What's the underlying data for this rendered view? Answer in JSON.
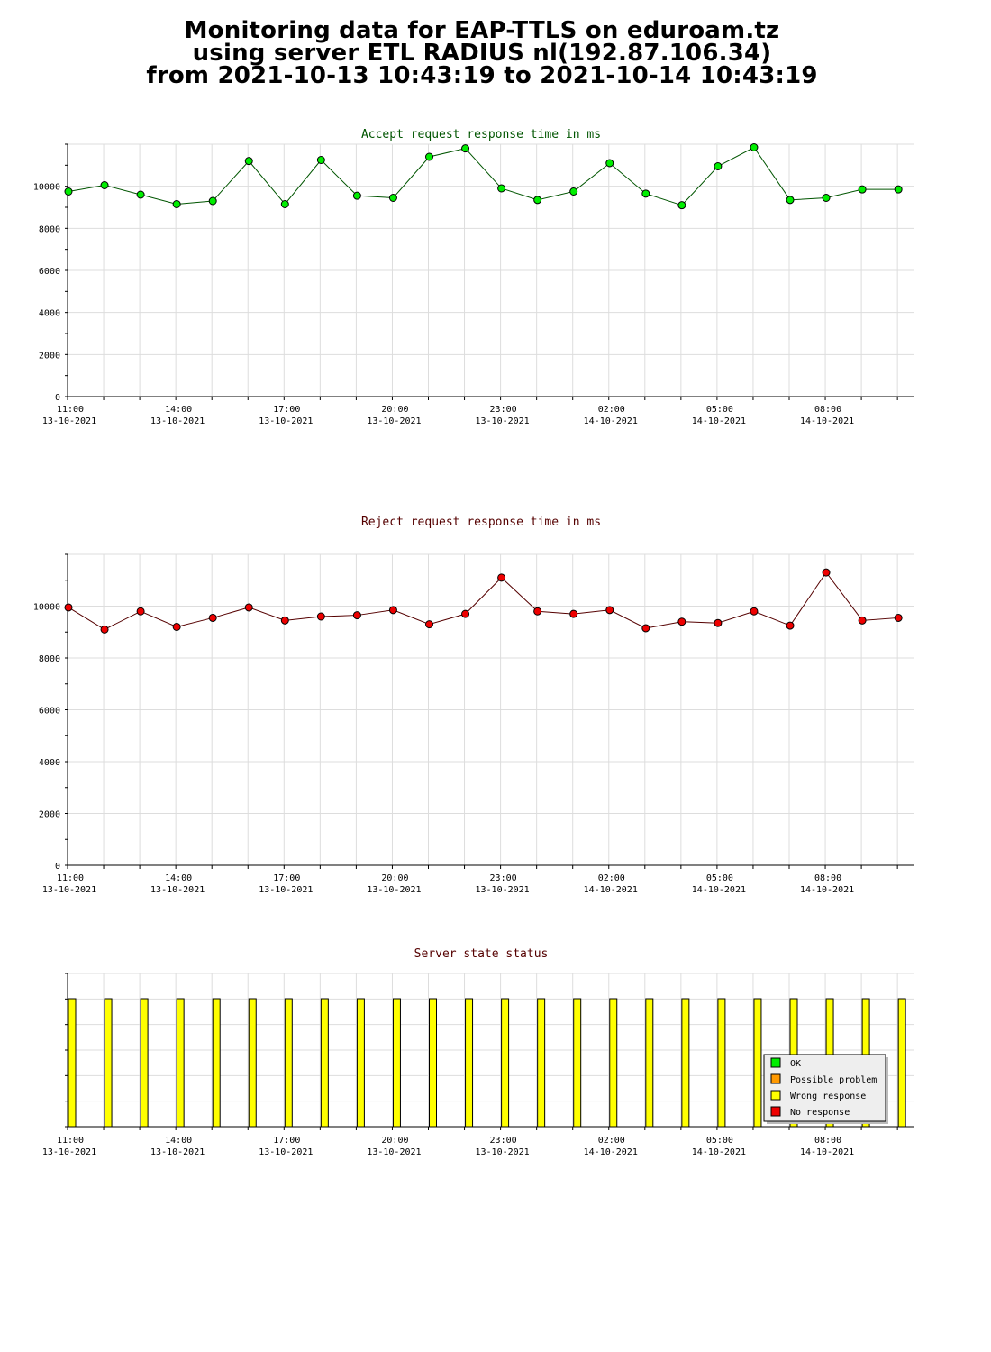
{
  "page_title": {
    "line1": "Monitoring data for EAP-TTLS on eduroam.tz",
    "line2": "using server ETL RADIUS nl(192.87.106.34)",
    "line3": "from 2021-10-13 10:43:19 to 2021-10-14 10:43:19"
  },
  "chart_data": [
    {
      "type": "line",
      "title": "Accept request response time in ms",
      "title_color": "#005500",
      "marker_color": "#00ee00",
      "line_color": "#005500",
      "ylim": [
        0,
        12000
      ],
      "yticks": [
        0,
        2000,
        4000,
        6000,
        8000,
        10000
      ],
      "x_tick_labels": [
        {
          "time": "11:00",
          "date": "13-10-2021"
        },
        {
          "time": "14:00",
          "date": "13-10-2021"
        },
        {
          "time": "17:00",
          "date": "13-10-2021"
        },
        {
          "time": "20:00",
          "date": "13-10-2021"
        },
        {
          "time": "23:00",
          "date": "13-10-2021"
        },
        {
          "time": "02:00",
          "date": "14-10-2021"
        },
        {
          "time": "05:00",
          "date": "14-10-2021"
        },
        {
          "time": "08:00",
          "date": "14-10-2021"
        }
      ],
      "grid": true,
      "values": [
        9750,
        10050,
        9600,
        9150,
        9300,
        11200,
        9150,
        11250,
        9550,
        9450,
        11400,
        11800,
        9900,
        9350,
        9750,
        11100,
        9650,
        9100,
        10950,
        11850,
        9350,
        9450,
        9850,
        9850
      ]
    },
    {
      "type": "line",
      "title": "Reject request response time in ms",
      "title_color": "#550000",
      "marker_color": "#ee0000",
      "line_color": "#550000",
      "ylim": [
        0,
        12000
      ],
      "yticks": [
        0,
        2000,
        4000,
        6000,
        8000,
        10000
      ],
      "x_tick_labels": [
        {
          "time": "11:00",
          "date": "13-10-2021"
        },
        {
          "time": "14:00",
          "date": "13-10-2021"
        },
        {
          "time": "17:00",
          "date": "13-10-2021"
        },
        {
          "time": "20:00",
          "date": "13-10-2021"
        },
        {
          "time": "23:00",
          "date": "13-10-2021"
        },
        {
          "time": "02:00",
          "date": "14-10-2021"
        },
        {
          "time": "05:00",
          "date": "14-10-2021"
        },
        {
          "time": "08:00",
          "date": "14-10-2021"
        }
      ],
      "grid": true,
      "values": [
        9950,
        9100,
        9800,
        9200,
        9550,
        9950,
        9450,
        9600,
        9650,
        9850,
        9300,
        9700,
        11100,
        9800,
        9700,
        9850,
        9150,
        9400,
        9350,
        9800,
        9250,
        11300,
        9450,
        9550
      ]
    },
    {
      "type": "bar",
      "title": "Server state status",
      "title_color": "#550000",
      "bar_color": "#ffff00",
      "x_tick_labels": [
        {
          "time": "11:00",
          "date": "13-10-2021"
        },
        {
          "time": "14:00",
          "date": "13-10-2021"
        },
        {
          "time": "17:00",
          "date": "13-10-2021"
        },
        {
          "time": "20:00",
          "date": "13-10-2021"
        },
        {
          "time": "23:00",
          "date": "13-10-2021"
        },
        {
          "time": "02:00",
          "date": "14-10-2021"
        },
        {
          "time": "05:00",
          "date": "14-10-2021"
        },
        {
          "time": "08:00",
          "date": "14-10-2021"
        }
      ],
      "values": [
        1,
        1,
        1,
        1,
        1,
        1,
        1,
        1,
        1,
        1,
        1,
        1,
        1,
        1,
        1,
        1,
        1,
        1,
        1,
        1,
        1,
        1,
        1,
        1
      ],
      "legend_position": "bottom-right",
      "legend": [
        {
          "label": "OK",
          "color": "#00ee00"
        },
        {
          "label": "Possible problem",
          "color": "#ff9900"
        },
        {
          "label": "Wrong response",
          "color": "#ffff00"
        },
        {
          "label": "No response",
          "color": "#ee0000"
        }
      ]
    }
  ]
}
